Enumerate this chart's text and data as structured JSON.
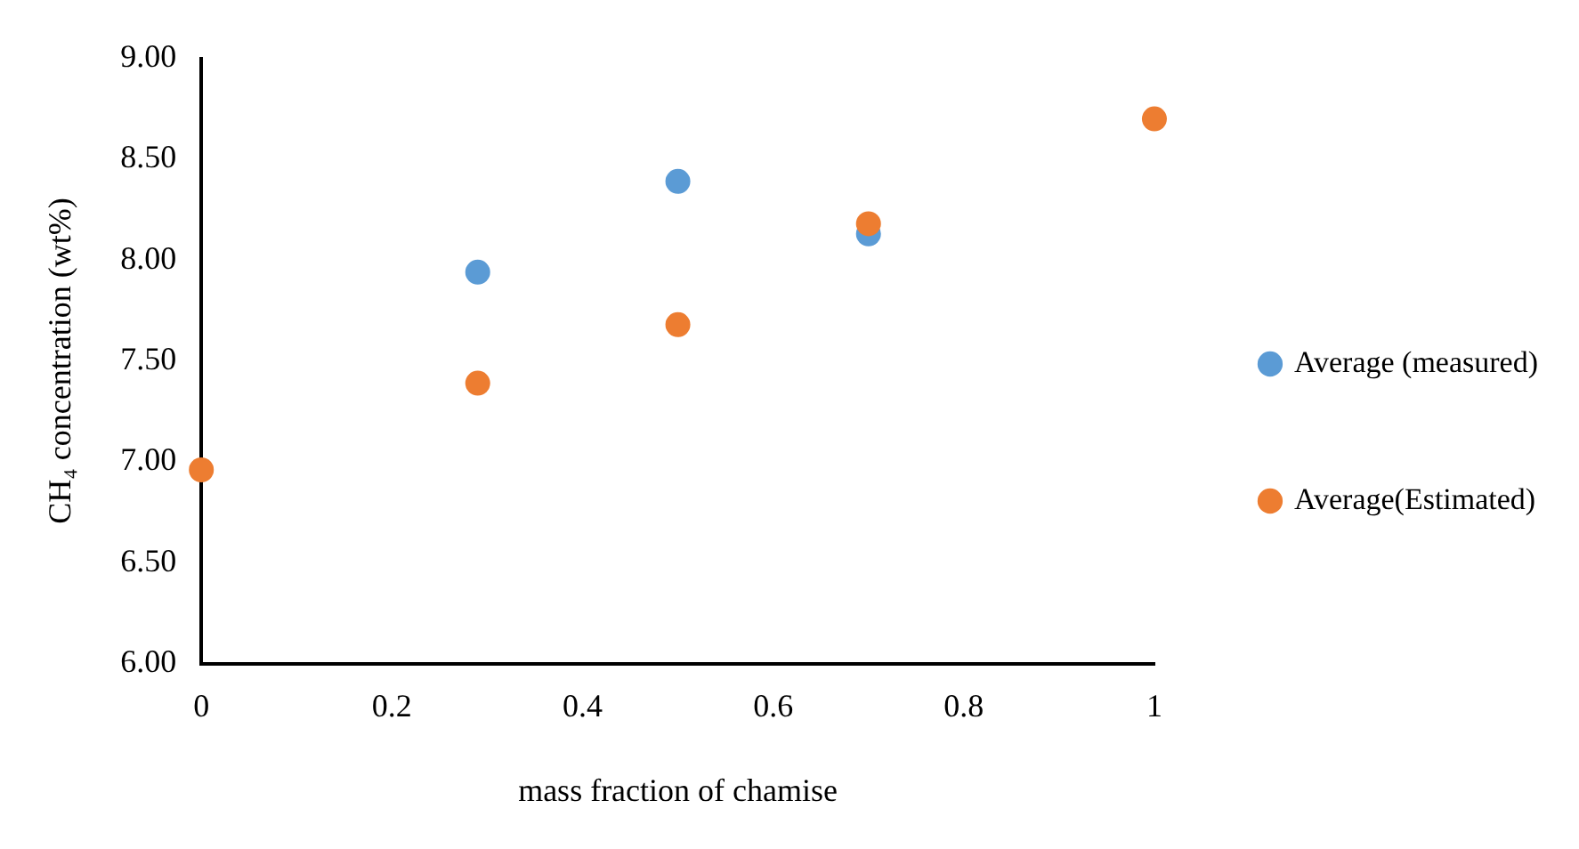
{
  "chart_data": {
    "type": "scatter",
    "xlabel": "mass fraction of chamise",
    "ylabel": "CH₄ concentration (wt%)",
    "x": [
      0,
      0.29,
      0.5,
      0.7,
      1
    ],
    "series": [
      {
        "name": "Average (measured)",
        "color": "#5b9bd5",
        "values": [
          null,
          7.94,
          8.39,
          8.13,
          null
        ]
      },
      {
        "name": "Average(Estimated)",
        "color": "#ed7d31",
        "values": [
          6.96,
          7.39,
          7.68,
          8.18,
          8.7
        ]
      }
    ],
    "xlim": [
      0,
      1
    ],
    "xticks": [
      0,
      0.2,
      0.4,
      0.6,
      0.8,
      1
    ],
    "ylim": [
      6,
      9
    ],
    "yticks": [
      {
        "value": 6,
        "label": "6.00"
      },
      {
        "value": 6.5,
        "label": "6.50"
      },
      {
        "value": 7,
        "label": "7.00"
      },
      {
        "value": 7.5,
        "label": "7.50"
      },
      {
        "value": 8,
        "label": "8.00"
      },
      {
        "value": 8.5,
        "label": "8.50"
      },
      {
        "value": 9,
        "label": "9.00"
      }
    ],
    "grid": false,
    "legend": "right",
    "marker": "circle"
  }
}
